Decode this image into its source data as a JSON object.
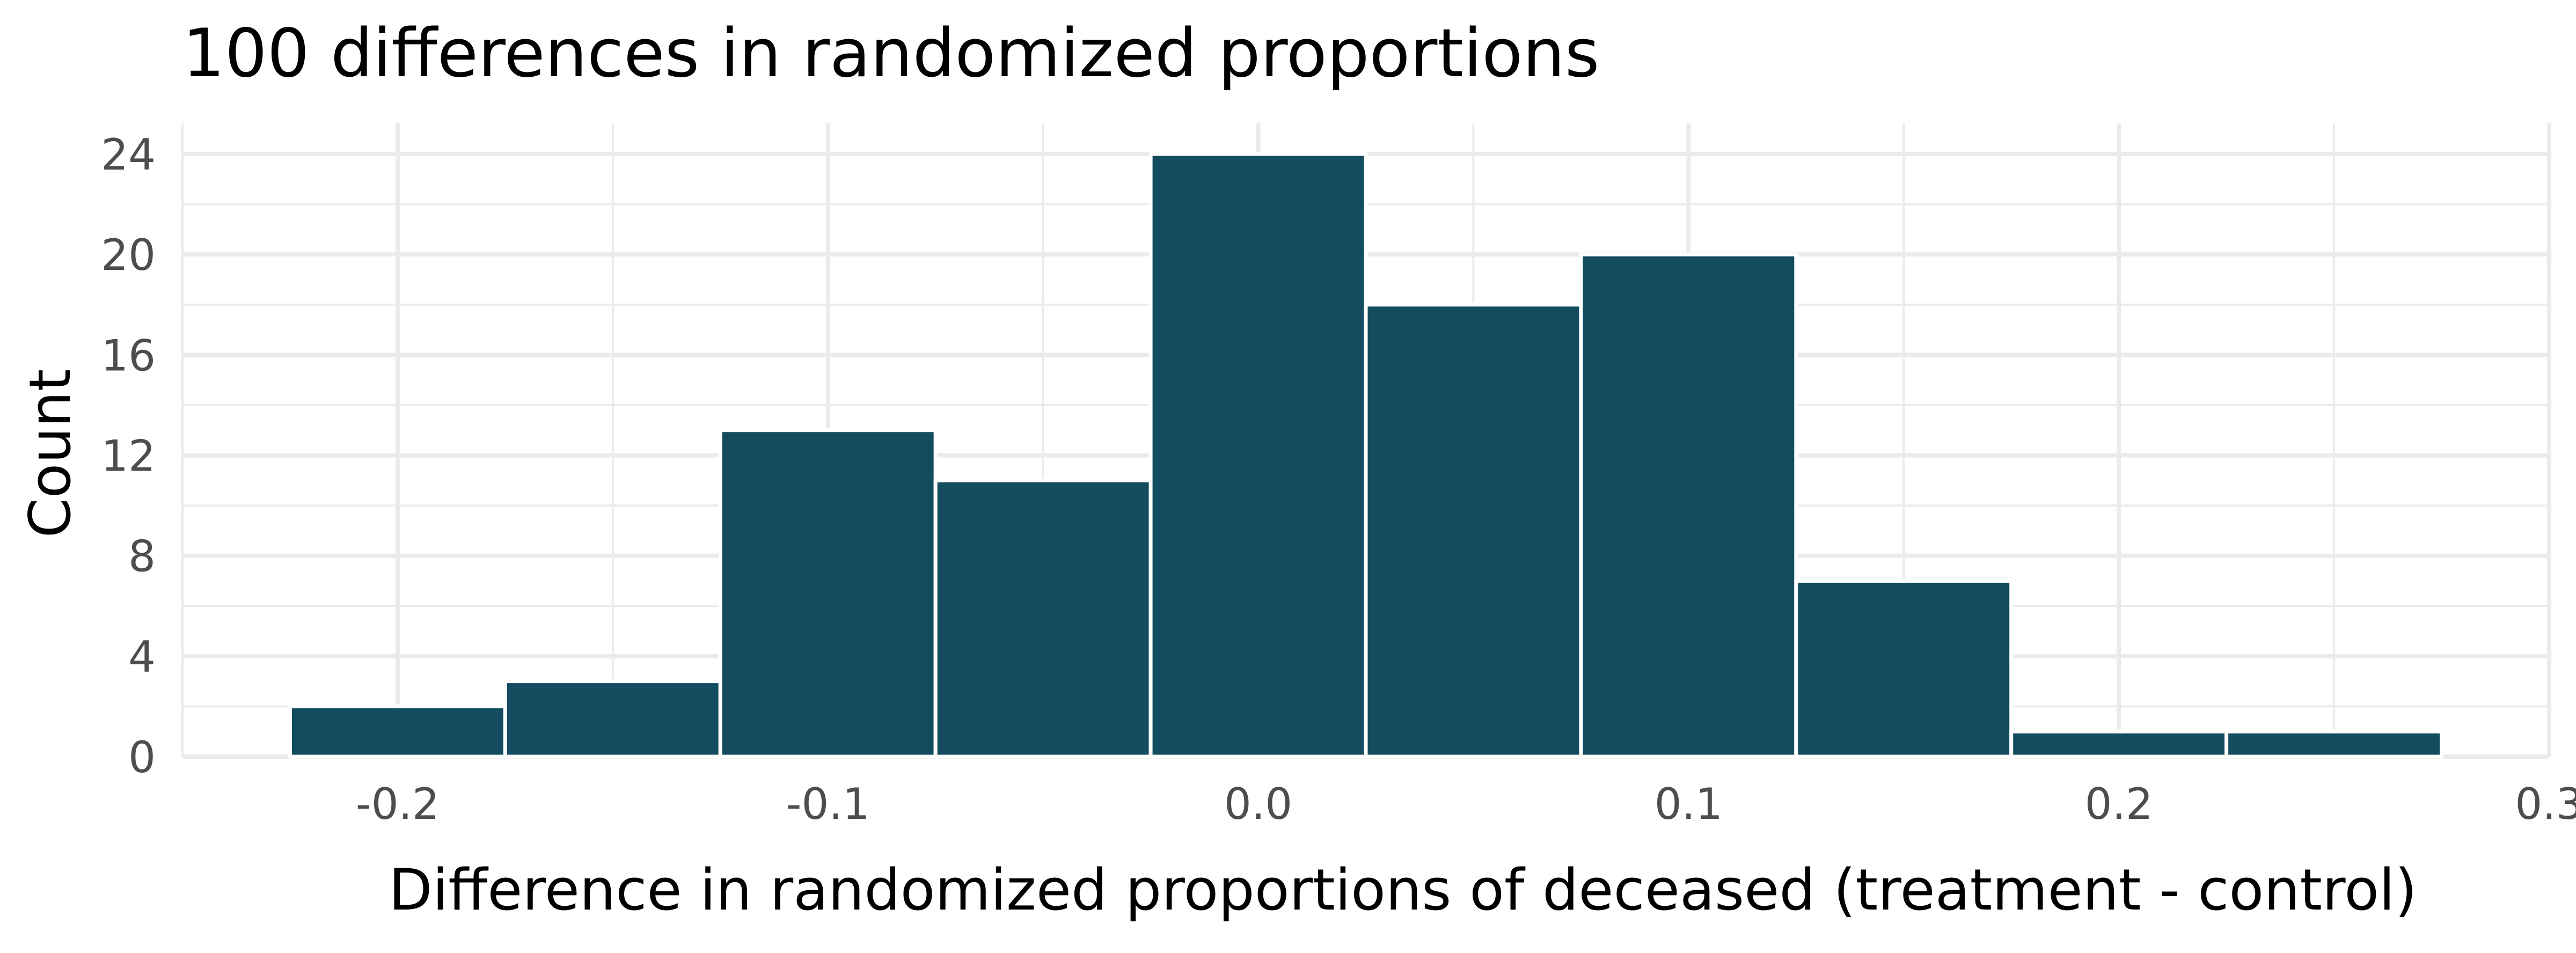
{
  "chart_data": {
    "type": "bar",
    "title": "100 differences in randomized proportions",
    "xlabel": "Difference in randomized proportions of deceased (treatment - control)",
    "ylabel": "Count",
    "bin_width": 0.05,
    "bins": [
      {
        "x_start": -0.225,
        "x_end": -0.175,
        "count": 2
      },
      {
        "x_start": -0.175,
        "x_end": -0.125,
        "count": 3
      },
      {
        "x_start": -0.125,
        "x_end": -0.075,
        "count": 13
      },
      {
        "x_start": -0.075,
        "x_end": -0.025,
        "count": 11
      },
      {
        "x_start": -0.025,
        "x_end": 0.025,
        "count": 24
      },
      {
        "x_start": 0.025,
        "x_end": 0.075,
        "count": 18
      },
      {
        "x_start": 0.075,
        "x_end": 0.125,
        "count": 20
      },
      {
        "x_start": 0.125,
        "x_end": 0.175,
        "count": 7
      },
      {
        "x_start": 0.175,
        "x_end": 0.225,
        "count": 1
      },
      {
        "x_start": 0.225,
        "x_end": 0.275,
        "count": 1
      }
    ],
    "xlim": [
      -0.25,
      0.3
    ],
    "ylim": [
      0,
      24
    ],
    "x_ticks": [
      -0.2,
      -0.1,
      0.0,
      0.1,
      0.2,
      0.3
    ],
    "x_tick_labels": [
      "-0.2",
      "-0.1",
      "0.0",
      "0.1",
      "0.2",
      "0.3"
    ],
    "y_ticks": [
      0,
      4,
      8,
      12,
      16,
      20,
      24
    ],
    "y_tick_labels": [
      "0",
      "4",
      "8",
      "12",
      "16",
      "20",
      "24"
    ],
    "grid": true,
    "bar_color": "#134b5f",
    "background_color": "#ffffff",
    "grid_color": "#ebebeb"
  }
}
